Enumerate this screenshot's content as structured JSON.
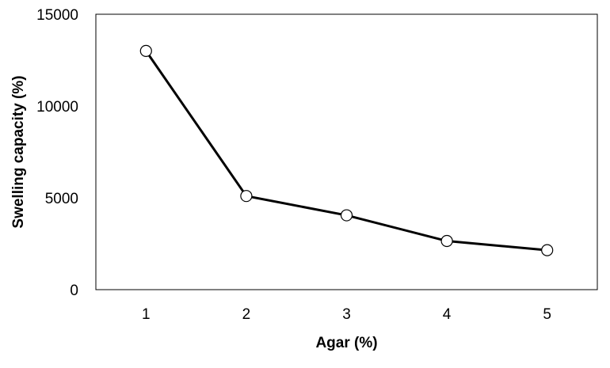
{
  "chart_data": {
    "type": "line",
    "title": "",
    "xlabel": "Agar (%)",
    "ylabel": "Swelling capacity (%)",
    "x": [
      1,
      2,
      3,
      4,
      5
    ],
    "x_tick_labels": [
      "1",
      "2",
      "3",
      "4",
      "5"
    ],
    "xlim": [
      0.5,
      5.5
    ],
    "ylim": [
      0,
      15000
    ],
    "y_ticks": [
      0,
      5000,
      10000,
      15000
    ],
    "y_tick_labels": [
      "0",
      "5000",
      "10000",
      "15000"
    ],
    "series": [
      {
        "values": [
          13000,
          5100,
          4050,
          2650,
          2150
        ],
        "line_color": "#000000",
        "marker": "circle",
        "marker_fill": "#ffffff",
        "marker_edge": "#000000"
      }
    ],
    "grid": false,
    "legend": "none"
  }
}
